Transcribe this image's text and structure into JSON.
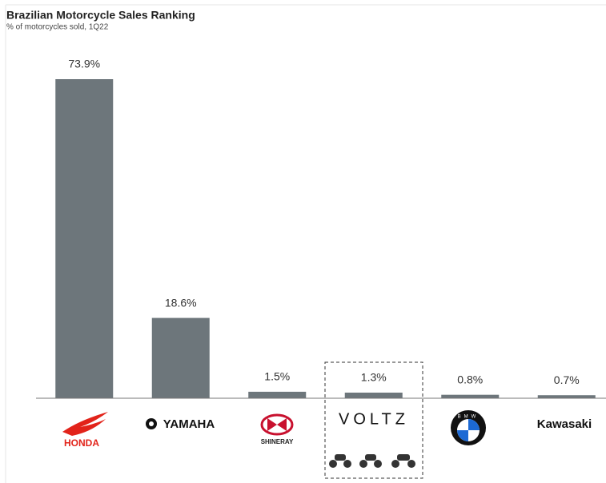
{
  "chart_data": {
    "type": "bar",
    "title": "Brazilian Motorcycle Sales Ranking",
    "subtitle": "% of motorcycles sold, 1Q22",
    "categories": [
      "HONDA",
      "YAMAHA",
      "SHINERAY",
      "VOLTZ",
      "BMW",
      "Kawasaki"
    ],
    "values": [
      73.9,
      18.6,
      1.5,
      1.3,
      0.8,
      0.7
    ],
    "value_labels": [
      "73.9%",
      "18.6%",
      "1.5%",
      "1.3%",
      "0.8%",
      "0.7%"
    ],
    "color": "#6d767b"
  }
}
